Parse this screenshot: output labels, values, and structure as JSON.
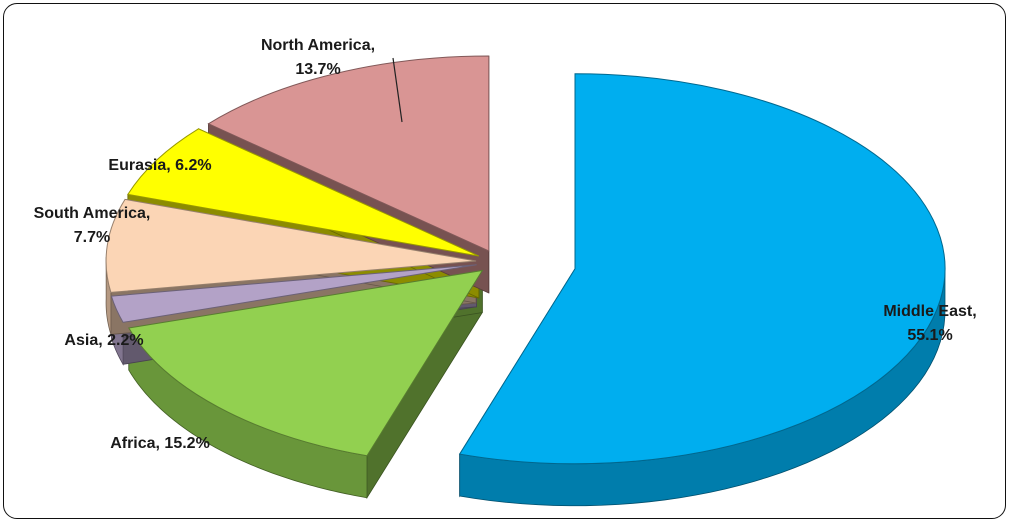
{
  "chart_data": {
    "type": "pie",
    "title": "",
    "legend": "none",
    "slices": [
      {
        "name": "Middle East",
        "value": 55.1,
        "color": "#00AEEF"
      },
      {
        "name": "Africa",
        "value": 15.2,
        "color": "#92D050"
      },
      {
        "name": "Asia",
        "value": 2.2,
        "color": "#B3A2C7"
      },
      {
        "name": "South America",
        "value": 7.7,
        "color": "#FBD5B5"
      },
      {
        "name": "Eurasia",
        "value": 6.2,
        "color": "#FFFF00"
      },
      {
        "name": "North America",
        "value": 13.7,
        "color": "#D99594"
      }
    ],
    "labels": [
      {
        "lines": [
          "Middle East,",
          "55.1%"
        ]
      },
      {
        "lines": [
          "Africa, 15.2%"
        ]
      },
      {
        "lines": [
          "Asia, 2.2%"
        ]
      },
      {
        "lines": [
          "South America,",
          "7.7%"
        ]
      },
      {
        "lines": [
          "Eurasia, 6.2%"
        ]
      },
      {
        "lines": [
          "North America,",
          "13.7%"
        ]
      }
    ]
  }
}
